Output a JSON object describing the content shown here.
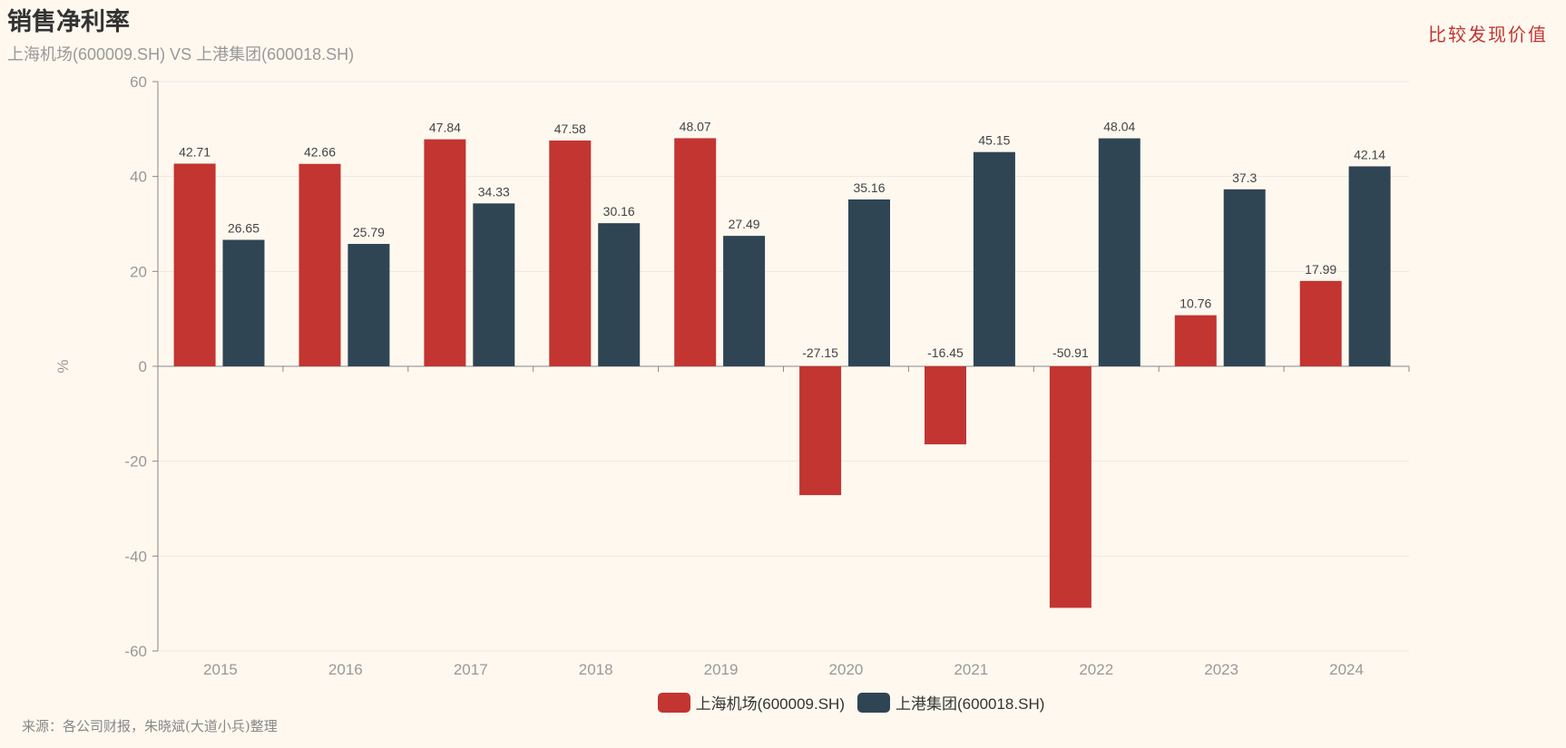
{
  "header": {
    "title": "销售净利率",
    "subtitle": "上海机场(600009.SH) VS 上港集团(600018.SH)",
    "brand": "比较发现价值"
  },
  "footer": {
    "source": "来源：各公司财报，朱晓斌(大道小兵)整理"
  },
  "chart_data": {
    "type": "bar",
    "title": "销售净利率",
    "xlabel": "",
    "ylabel": "%",
    "ylim": [
      -60,
      60
    ],
    "yticks": [
      60,
      40,
      20,
      0,
      -20,
      -40,
      -60
    ],
    "grid": true,
    "legend_position": "bottom",
    "categories": [
      "2015",
      "2016",
      "2017",
      "2018",
      "2019",
      "2020",
      "2021",
      "2022",
      "2023",
      "2024"
    ],
    "series": [
      {
        "name": "上海机场(600009.SH)",
        "color": "#c23531",
        "values": [
          42.71,
          42.66,
          47.84,
          47.58,
          48.07,
          -27.15,
          -16.45,
          -50.91,
          10.76,
          17.99
        ]
      },
      {
        "name": "上港集团(600018.SH)",
        "color": "#2f4554",
        "values": [
          26.65,
          25.79,
          34.33,
          30.16,
          27.49,
          35.16,
          45.15,
          48.04,
          37.3,
          42.14
        ]
      }
    ]
  }
}
